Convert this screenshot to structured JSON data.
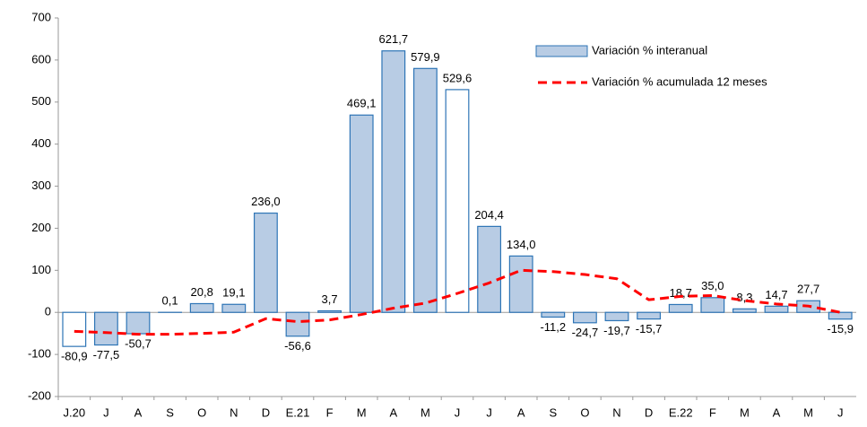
{
  "chart_data": {
    "type": "bar-line",
    "categories": [
      "J.20",
      "J",
      "A",
      "S",
      "O",
      "N",
      "D",
      "E.21",
      "F",
      "M",
      "A",
      "M",
      "J",
      "J",
      "A",
      "S",
      "O",
      "N",
      "D",
      "E.22",
      "F",
      "M",
      "A",
      "M",
      "J"
    ],
    "series": [
      {
        "name": "Variación % interanual",
        "type": "bar",
        "color": "#b8cce4",
        "edge_color": "#2e75b6",
        "colors": [
          "#ffffff",
          "#b8cce4",
          "#b8cce4",
          "#b8cce4",
          "#b8cce4",
          "#b8cce4",
          "#b8cce4",
          "#b8cce4",
          "#b8cce4",
          "#b8cce4",
          "#b8cce4",
          "#b8cce4",
          "#ffffff",
          "#b8cce4",
          "#b8cce4",
          "#b8cce4",
          "#b8cce4",
          "#b8cce4",
          "#b8cce4",
          "#b8cce4",
          "#b8cce4",
          "#b8cce4",
          "#b8cce4",
          "#b8cce4",
          "#b8cce4"
        ],
        "values": [
          -80.9,
          -77.5,
          -50.7,
          0.1,
          20.8,
          19.1,
          236.0,
          -56.6,
          3.7,
          469.1,
          621.7,
          579.9,
          529.6,
          204.4,
          134.0,
          -11.2,
          -24.7,
          -19.7,
          -15.7,
          18.7,
          35.0,
          8.3,
          14.7,
          27.7,
          -15.9
        ],
        "value_labels": [
          "-80,9",
          "-77,5",
          "-50,7",
          "0,1",
          "20,8",
          "19,1",
          "236,0",
          "-56,6",
          "3,7",
          "469,1",
          "621,7",
          "579,9",
          "529,6",
          "204,4",
          "134,0",
          "-11,2",
          "-24,7",
          "-19,7",
          "-15,7",
          "18,7",
          "35,0",
          "8,3",
          "14,7",
          "27,7",
          "-15,9"
        ]
      },
      {
        "name": "Variación % acumulada 12 meses",
        "type": "line",
        "color": "#ff0000",
        "values": [
          -45,
          -48,
          -52,
          -52,
          -50,
          -47,
          -15,
          -22,
          -18,
          -5,
          10,
          22,
          45,
          70,
          100,
          97,
          90,
          80,
          30,
          38,
          40,
          28,
          20,
          15,
          0
        ]
      }
    ],
    "ylim": [
      -200,
      700
    ],
    "yticks": [
      -200,
      -100,
      0,
      100,
      200,
      300,
      400,
      500,
      600,
      700
    ]
  }
}
